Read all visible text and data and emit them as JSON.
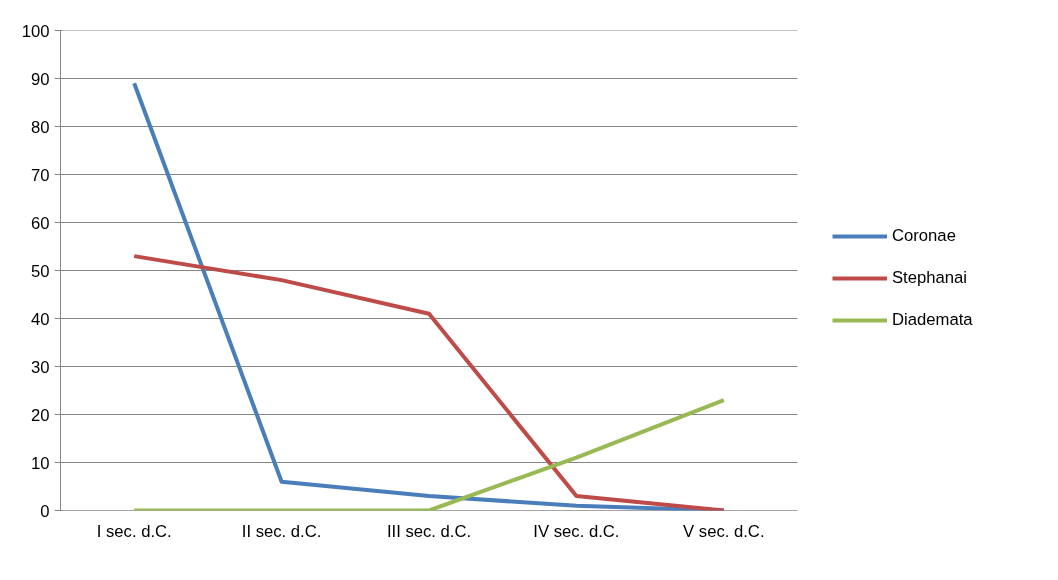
{
  "chart_data": {
    "type": "line",
    "categories": [
      "I sec. d.C.",
      "II sec. d.C.",
      "III sec. d.C.",
      "IV sec. d.C.",
      "V sec. d.C."
    ],
    "series": [
      {
        "name": "Coronae",
        "color": "#4a7ebb",
        "values": [
          89,
          6,
          3,
          1,
          0
        ]
      },
      {
        "name": "Stephanai",
        "color": "#be4b48",
        "values": [
          53,
          48,
          41,
          3,
          0
        ]
      },
      {
        "name": "Diademata",
        "color": "#98b954",
        "values": [
          0,
          0,
          0,
          11,
          23
        ]
      }
    ],
    "ylim": [
      0,
      100
    ],
    "yticks": [
      0,
      10,
      20,
      30,
      40,
      50,
      60,
      70,
      80,
      90,
      100
    ],
    "grid": "y",
    "legend": "right",
    "marker": "none",
    "line_style": "solid"
  }
}
